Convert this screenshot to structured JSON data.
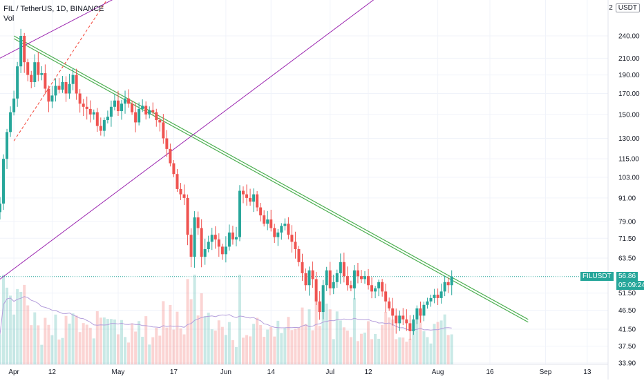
{
  "legend": {
    "title": "FIL / TetherUS, 1D, BINANCE",
    "volume_label": "Vol"
  },
  "scale_box": {
    "value": "2",
    "currency": "USDT"
  },
  "price_tag": {
    "symbol": "FILUSDT",
    "price": "56.86",
    "countdown": "05:09:24"
  },
  "colors": {
    "up": "#26a69a",
    "down": "#ef5350",
    "trend_green": "#4caf50",
    "channel_purple": "#9c27b0",
    "channel_dashed": "#f44336",
    "volume_ma": "#b39ddb",
    "tag_green": "#26a69a"
  },
  "chart_data": {
    "type": "candlestick",
    "symbol": "FIL / TetherUS",
    "interval": "1D",
    "exchange": "BINANCE",
    "y_scale": "log",
    "ylim": [
      33.9,
      300
    ],
    "y_ticks": [
      "240.00",
      "210.00",
      "190.00",
      "170.00",
      "150.00",
      "130.00",
      "115.00",
      "103.00",
      "91.00",
      "79.00",
      "71.50",
      "63.50",
      "51.50",
      "46.50",
      "41.50",
      "37.50",
      "33.90"
    ],
    "x_labels": [
      {
        "date": "2021-04-01",
        "label": "Apr"
      },
      {
        "date": "2021-04-12",
        "label": "12"
      },
      {
        "date": "2021-05-01",
        "label": "May"
      },
      {
        "date": "2021-05-17",
        "label": "17"
      },
      {
        "date": "2021-06-01",
        "label": "Jun"
      },
      {
        "date": "2021-06-14",
        "label": "14"
      },
      {
        "date": "2021-07-01",
        "label": "Jul"
      },
      {
        "date": "2021-07-12",
        "label": "12"
      },
      {
        "date": "2021-08-01",
        "label": "Aug"
      },
      {
        "date": "2021-08-16",
        "label": "16"
      },
      {
        "date": "2021-09-01",
        "label": "Sep"
      },
      {
        "date": "2021-09-13",
        "label": "13"
      }
    ],
    "x_range": [
      "2021-03-28",
      "2021-09-19"
    ],
    "last_price": 56.86,
    "closes": [
      88,
      115,
      135,
      152,
      165,
      200,
      240,
      205,
      190,
      182,
      205,
      190,
      192,
      175,
      162,
      168,
      178,
      174,
      182,
      170,
      180,
      190,
      170,
      160,
      157,
      155,
      150,
      152,
      140,
      136,
      145,
      148,
      157,
      163,
      153,
      160,
      165,
      160,
      152,
      143,
      155,
      158,
      150,
      154,
      152,
      145,
      143,
      130,
      122,
      112,
      105,
      96,
      93,
      91,
      73,
      64,
      81,
      76,
      64,
      67,
      70,
      73,
      71,
      68,
      65,
      68,
      74,
      71,
      72,
      95,
      93,
      91,
      89,
      93,
      86,
      82,
      78,
      80,
      76,
      72,
      74,
      77,
      78,
      73,
      70,
      67,
      62,
      58,
      54,
      59,
      56,
      49,
      46,
      54,
      59,
      53,
      55,
      58,
      62,
      57,
      54,
      53,
      59,
      57,
      56,
      57,
      54,
      52,
      53,
      55,
      52,
      49,
      47,
      45,
      43,
      45,
      44,
      43,
      41,
      44,
      47,
      45,
      48,
      49,
      50,
      51,
      50,
      52,
      55,
      54,
      56.86
    ],
    "trend_lines": [
      {
        "kind": "descending",
        "from": {
          "date": "2021-04-01",
          "price": 240
        },
        "to": {
          "date": "2021-08-27",
          "price": 44
        }
      },
      {
        "kind": "channel_upper",
        "from": {
          "date": "2021-03-28",
          "price": 210
        },
        "to": {
          "date": "2021-04-30",
          "price": 300
        }
      },
      {
        "kind": "channel_mid",
        "from": {
          "date": "2021-04-01",
          "price": 128
        },
        "to": {
          "date": "2021-04-28",
          "price": 300
        }
      },
      {
        "kind": "channel_lower",
        "from": {
          "date": "2021-03-28",
          "price": 56
        },
        "to": {
          "date": "2021-07-14",
          "price": 300
        }
      }
    ]
  }
}
